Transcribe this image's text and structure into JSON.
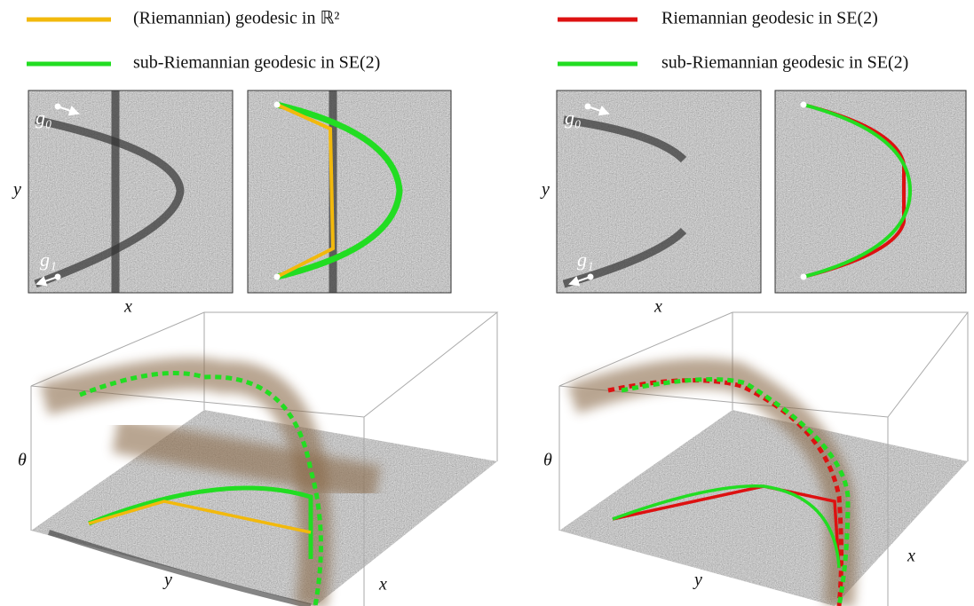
{
  "left": {
    "legend": [
      {
        "label": "(Riemannian) geodesic in ℝ²",
        "color": "#f2b90c"
      },
      {
        "label": "sub-Riemannian geodesic in SE(2)",
        "color": "#22dd22"
      }
    ],
    "image_labels": [
      "g₀",
      "g₁"
    ],
    "axes_2d": [
      "x",
      "y"
    ],
    "axes_3d": [
      "θ",
      "y",
      "x"
    ]
  },
  "right": {
    "legend": [
      {
        "label": "Riemannian geodesic in SE(2)",
        "color": "#dd1111"
      },
      {
        "label": "sub-Riemannian geodesic in SE(2)",
        "color": "#22dd22"
      }
    ],
    "image_labels": [
      "g₀",
      "g₁"
    ],
    "axes_2d": [
      "x",
      "y"
    ],
    "axes_3d": [
      "θ",
      "y",
      "x"
    ]
  }
}
